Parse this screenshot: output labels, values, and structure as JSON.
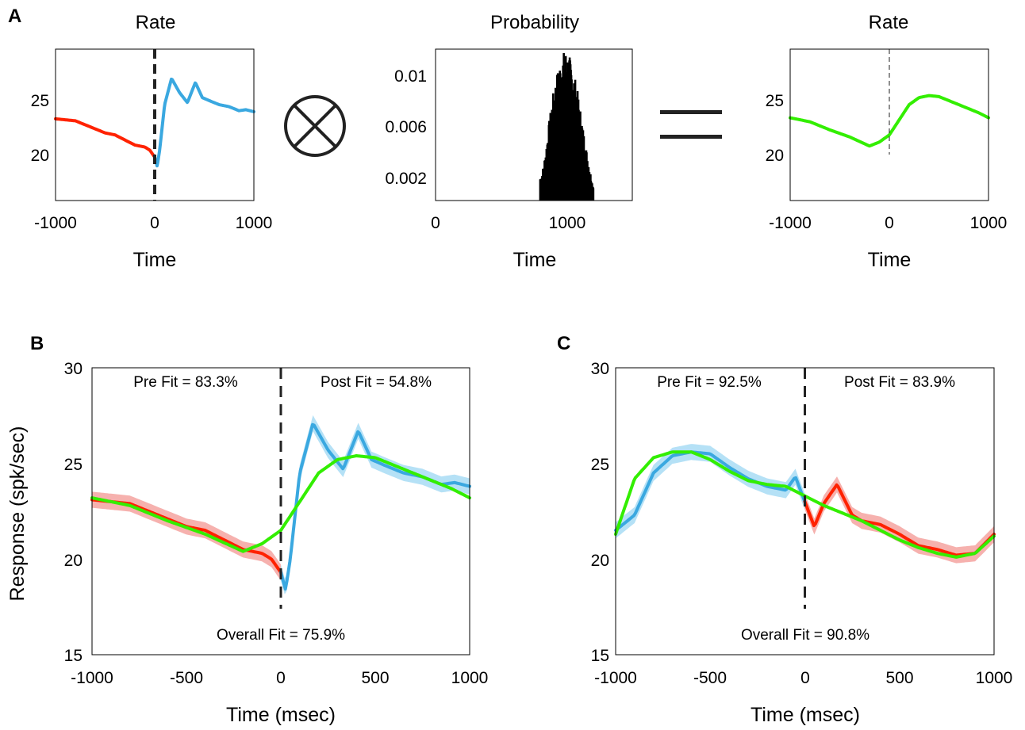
{
  "colors": {
    "pre": "#ff2200",
    "post": "#3aa8e0",
    "fit": "#33ee00",
    "pre_band": "#f5a3a0",
    "post_band": "#a8dcf4",
    "axis": "#000000",
    "dash": "#222222"
  },
  "panel_a": {
    "letter": "A",
    "left": {
      "title": "Rate",
      "xlabel": "Time",
      "xticks": [
        "-1000",
        "0",
        "1000"
      ],
      "yticks": [
        "25",
        "20"
      ]
    },
    "middle": {
      "title": "Probability",
      "xlabel": "Time",
      "xticks": [
        "0",
        "1000"
      ],
      "yticks": [
        "0.01",
        "0.006",
        "0.002"
      ]
    },
    "right": {
      "title": "Rate",
      "xlabel": "Time",
      "xticks": [
        "-1000",
        "0",
        "1000"
      ],
      "yticks": [
        "25",
        "20"
      ]
    },
    "operator_icon": "circled-times-icon",
    "equals_icon": "equals-sign-icon"
  },
  "panel_b": {
    "letter": "B",
    "ylabel": "Response (spk/sec)",
    "xlabel": "Time (msec)",
    "xticks": [
      "-1000",
      "-500",
      "0",
      "500",
      "1000"
    ],
    "yticks": [
      "30",
      "25",
      "20",
      "15"
    ],
    "pre_fit": "Pre Fit = 83.3%",
    "post_fit": "Post Fit = 54.8%",
    "overall_fit": "Overall Fit = 75.9%"
  },
  "panel_c": {
    "letter": "C",
    "xlabel": "Time (msec)",
    "xticks": [
      "-1000",
      "-500",
      "0",
      "500",
      "1000"
    ],
    "yticks": [
      "30",
      "25",
      "20",
      "15"
    ],
    "pre_fit": "Pre Fit = 92.5%",
    "post_fit": "Post Fit = 83.9%",
    "overall_fit": "Overall Fit = 90.8%"
  },
  "chart_data": [
    {
      "id": "A-left",
      "type": "line",
      "title": "Rate",
      "xlabel": "Time",
      "ylabel": "",
      "xlim": [
        -1000,
        1000
      ],
      "ylim": [
        15,
        30
      ],
      "event_line_x": 0,
      "series": [
        {
          "role": "pre",
          "color": "#ff2200",
          "x": [
            -1000,
            -900,
            -800,
            -700,
            -600,
            -500,
            -400,
            -300,
            -200,
            -100,
            -50,
            0
          ],
          "y": [
            23.1,
            23.0,
            22.9,
            22.5,
            22.1,
            21.7,
            21.5,
            21.0,
            20.5,
            20.3,
            20.0,
            19.3
          ]
        },
        {
          "role": "post",
          "color": "#3aa8e0",
          "x": [
            0,
            25,
            50,
            100,
            170,
            250,
            330,
            410,
            480,
            550,
            650,
            750,
            850,
            920,
            1000
          ],
          "y": [
            19.3,
            18.4,
            20.0,
            24.5,
            27.1,
            25.7,
            24.7,
            26.7,
            25.2,
            24.9,
            24.5,
            24.3,
            23.9,
            24.0,
            23.8
          ]
        }
      ]
    },
    {
      "id": "A-middle",
      "type": "bar",
      "title": "Probability",
      "xlabel": "Time",
      "ylabel": "",
      "xlim": [
        0,
        1500
      ],
      "ylim": [
        0,
        0.0125
      ],
      "x": [
        800,
        830,
        860,
        890,
        920,
        950,
        980,
        1010,
        1040,
        1070,
        1100,
        1130,
        1160,
        1190
      ],
      "values": [
        0.0018,
        0.0035,
        0.006,
        0.008,
        0.0095,
        0.0106,
        0.0112,
        0.0108,
        0.0098,
        0.0084,
        0.0065,
        0.0045,
        0.0028,
        0.0012
      ]
    },
    {
      "id": "A-right",
      "type": "line",
      "title": "Rate",
      "xlabel": "Time",
      "ylabel": "",
      "xlim": [
        -1000,
        1000
      ],
      "ylim": [
        15,
        30
      ],
      "event_line_x": 0,
      "series": [
        {
          "role": "fit",
          "color": "#33ee00",
          "x": [
            -1000,
            -800,
            -600,
            -400,
            -200,
            -100,
            0,
            100,
            200,
            300,
            400,
            500,
            600,
            700,
            800,
            900,
            1000
          ],
          "y": [
            23.2,
            22.8,
            22.0,
            21.3,
            20.4,
            20.8,
            21.5,
            23.0,
            24.5,
            25.2,
            25.4,
            25.3,
            24.9,
            24.5,
            24.1,
            23.7,
            23.2
          ]
        }
      ]
    },
    {
      "id": "B",
      "type": "line",
      "title": "",
      "xlabel": "Time (msec)",
      "ylabel": "Response (spk/sec)",
      "xlim": [
        -1000,
        1000
      ],
      "ylim": [
        15,
        30
      ],
      "event_line_x": 0,
      "series": [
        {
          "role": "pre",
          "color": "#ff2200",
          "x": [
            -1000,
            -900,
            -800,
            -700,
            -600,
            -500,
            -400,
            -300,
            -200,
            -100,
            -50,
            0
          ],
          "y": [
            23.1,
            23.0,
            22.9,
            22.5,
            22.1,
            21.7,
            21.5,
            21.0,
            20.5,
            20.3,
            20.0,
            19.3
          ]
        },
        {
          "role": "post",
          "color": "#3aa8e0",
          "x": [
            0,
            25,
            50,
            100,
            170,
            250,
            330,
            410,
            480,
            550,
            650,
            750,
            850,
            920,
            1000
          ],
          "y": [
            19.3,
            18.4,
            20.0,
            24.5,
            27.1,
            25.7,
            24.7,
            26.7,
            25.2,
            24.9,
            24.5,
            24.3,
            23.9,
            24.0,
            23.8
          ]
        },
        {
          "role": "fit",
          "color": "#33ee00",
          "x": [
            -1000,
            -800,
            -600,
            -400,
            -200,
            -100,
            0,
            100,
            200,
            300,
            400,
            500,
            600,
            700,
            800,
            900,
            1000
          ],
          "y": [
            23.2,
            22.8,
            22.0,
            21.3,
            20.4,
            20.8,
            21.5,
            23.0,
            24.5,
            25.2,
            25.4,
            25.3,
            24.9,
            24.5,
            24.1,
            23.7,
            23.2
          ]
        }
      ]
    },
    {
      "id": "C",
      "type": "line",
      "title": "",
      "xlabel": "Time (msec)",
      "ylabel": "",
      "xlim": [
        -1000,
        1000
      ],
      "ylim": [
        15,
        30
      ],
      "event_line_x": 0,
      "series": [
        {
          "role": "pre",
          "color": "#3aa8e0",
          "x": [
            -1000,
            -900,
            -800,
            -700,
            -600,
            -500,
            -400,
            -300,
            -200,
            -100,
            -50,
            0
          ],
          "y": [
            21.5,
            22.3,
            24.5,
            25.4,
            25.6,
            25.5,
            24.8,
            24.2,
            23.8,
            23.6,
            24.3,
            23.0
          ]
        },
        {
          "role": "post",
          "color": "#ff2200",
          "x": [
            0,
            50,
            100,
            170,
            250,
            300,
            400,
            500,
            600,
            700,
            800,
            900,
            1000
          ],
          "y": [
            23.0,
            21.7,
            22.9,
            23.9,
            22.3,
            22.0,
            21.8,
            21.3,
            20.7,
            20.5,
            20.2,
            20.3,
            21.3
          ]
        },
        {
          "role": "fit",
          "color": "#33ee00",
          "x": [
            -1000,
            -900,
            -800,
            -700,
            -600,
            -500,
            -400,
            -300,
            -200,
            -100,
            0,
            100,
            200,
            300,
            400,
            500,
            600,
            700,
            800,
            900,
            1000
          ],
          "y": [
            21.3,
            24.2,
            25.3,
            25.6,
            25.6,
            25.2,
            24.6,
            24.1,
            23.9,
            23.8,
            23.3,
            22.8,
            22.4,
            22.0,
            21.5,
            21.0,
            20.6,
            20.3,
            20.1,
            20.3,
            21.2
          ]
        }
      ]
    }
  ]
}
